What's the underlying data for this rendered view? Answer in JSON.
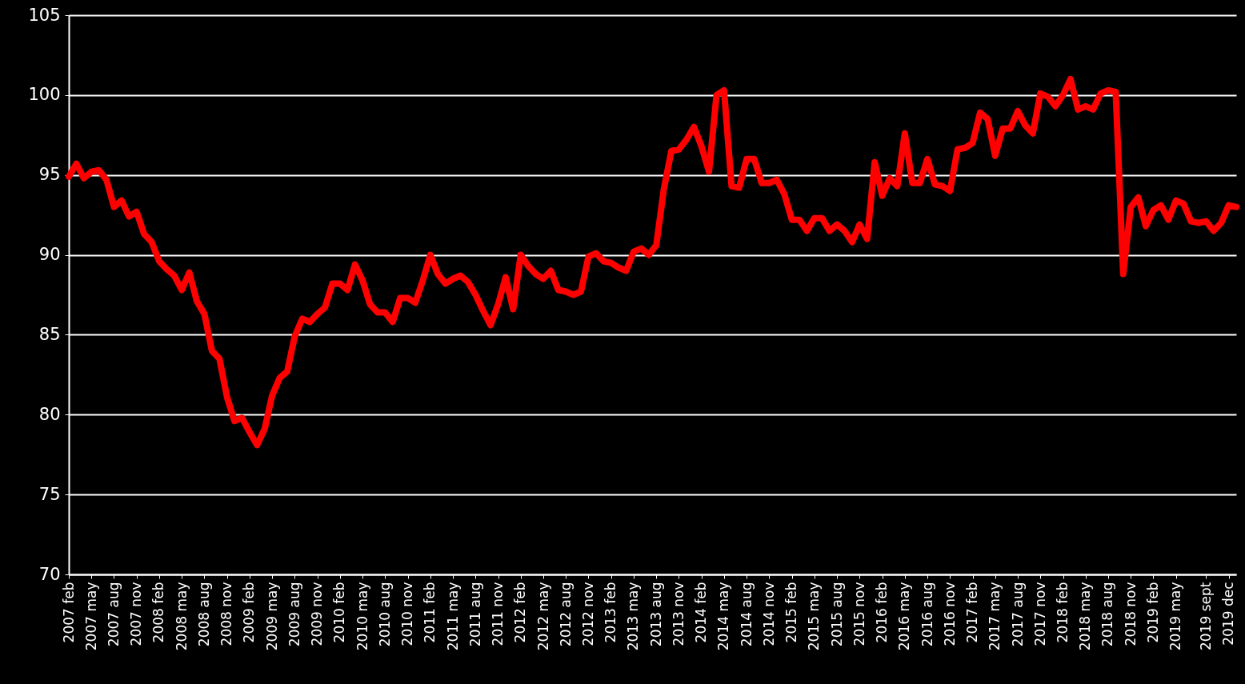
{
  "chart_data": {
    "type": "line",
    "categories": [
      "2007 feb",
      null,
      null,
      "2007 may",
      null,
      null,
      "2007 aug",
      null,
      null,
      "2007 nov",
      null,
      null,
      "2008 feb",
      null,
      null,
      "2008 may",
      null,
      null,
      "2008 aug",
      null,
      null,
      "2008 nov",
      null,
      null,
      "2009 feb",
      null,
      null,
      "2009 may",
      null,
      null,
      "2009 aug",
      null,
      null,
      "2009 nov",
      null,
      null,
      "2010 feb",
      null,
      null,
      "2010 may",
      null,
      null,
      "2010 aug",
      null,
      null,
      "2010 nov",
      null,
      null,
      "2011 feb",
      null,
      null,
      "2011 may",
      null,
      null,
      "2011 aug",
      null,
      null,
      "2011 nov",
      null,
      null,
      "2012 feb",
      null,
      null,
      "2012 may",
      null,
      null,
      "2012 aug",
      null,
      null,
      "2012 nov",
      null,
      null,
      "2013 feb",
      null,
      null,
      "2013 may",
      null,
      null,
      "2013 aug",
      null,
      null,
      "2013 nov",
      null,
      null,
      "2014 feb",
      null,
      null,
      "2014 may",
      null,
      null,
      "2014 aug",
      null,
      null,
      "2014 nov",
      null,
      null,
      "2015 feb",
      null,
      null,
      "2015 may",
      null,
      null,
      "2015 aug",
      null,
      null,
      "2015 nov",
      null,
      null,
      "2016 feb",
      null,
      null,
      "2016 may",
      null,
      null,
      "2016 aug",
      null,
      null,
      "2016 nov",
      null,
      null,
      "2017 feb",
      null,
      null,
      "2017 may",
      null,
      null,
      "2017 aug",
      null,
      null,
      "2017 nov",
      null,
      null,
      "2018 feb",
      null,
      null,
      "2018 may",
      null,
      null,
      "2018 aug",
      null,
      null,
      "2018 nov",
      null,
      null,
      "2019 feb",
      null,
      null,
      "2019 may",
      null,
      null,
      null,
      "2019 sept",
      null,
      null,
      "2019 dec",
      null
    ],
    "series": [
      {
        "color": "#ff0000",
        "values": [
          94.9,
          95.7,
          94.8,
          95.2,
          95.3,
          94.7,
          93.0,
          93.4,
          92.4,
          92.7,
          91.3,
          90.8,
          89.6,
          89.1,
          88.7,
          87.8,
          88.9,
          87.1,
          86.3,
          84.0,
          83.5,
          81.1,
          79.6,
          79.8,
          78.9,
          78.1,
          79.1,
          81.2,
          82.3,
          82.7,
          84.9,
          86.0,
          85.8,
          86.3,
          86.7,
          88.2,
          88.2,
          87.8,
          89.4,
          88.4,
          86.9,
          86.4,
          86.4,
          85.8,
          87.3,
          87.3,
          87.0,
          88.4,
          90.0,
          88.8,
          88.2,
          88.5,
          88.7,
          88.3,
          87.5,
          86.5,
          85.6,
          86.9,
          88.6,
          86.6,
          90.0,
          89.3,
          88.8,
          88.5,
          89.0,
          87.8,
          87.7,
          87.5,
          87.7,
          89.9,
          90.1,
          89.6,
          89.5,
          89.2,
          89.0,
          90.2,
          90.4,
          90.0,
          90.6,
          94.1,
          96.5,
          96.6,
          97.2,
          98.0,
          96.8,
          95.2,
          100.0,
          100.3,
          94.3,
          94.2,
          96.0,
          96.0,
          94.5,
          94.5,
          94.7,
          93.8,
          92.2,
          92.2,
          91.5,
          92.3,
          92.3,
          91.5,
          91.9,
          91.5,
          90.8,
          91.9,
          91.0,
          95.8,
          93.7,
          94.8,
          94.3,
          97.6,
          94.5,
          94.5,
          96.0,
          94.4,
          94.3,
          94.0,
          96.6,
          96.7,
          97.0,
          98.9,
          98.5,
          96.2,
          97.9,
          97.9,
          99.0,
          98.1,
          97.6,
          100.1,
          99.9,
          99.3,
          100.0,
          101.0,
          99.1,
          99.3,
          99.1,
          100.1,
          100.3,
          100.2,
          88.8,
          93.0,
          93.6,
          91.8,
          92.8,
          93.1,
          92.2,
          93.4,
          93.2,
          92.1,
          92.0,
          92.1,
          91.5,
          92.0,
          93.1,
          93.0
        ]
      }
    ],
    "ylim": [
      70,
      105
    ],
    "yticks": [
      70,
      75,
      80,
      85,
      90,
      95,
      100,
      105
    ],
    "grid": "y"
  }
}
